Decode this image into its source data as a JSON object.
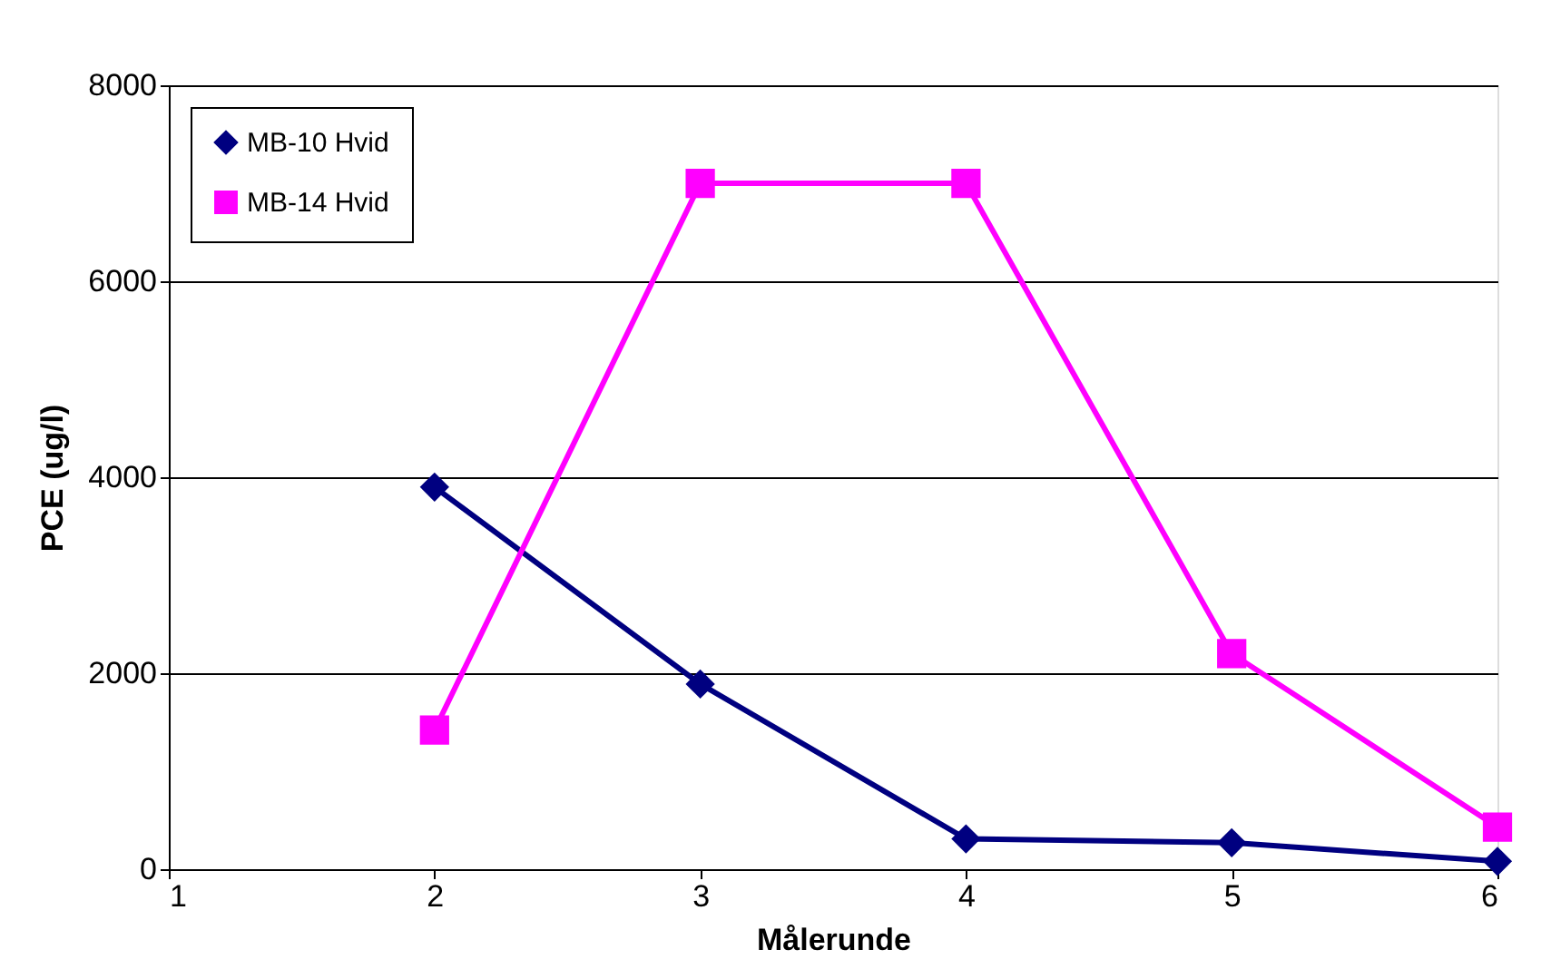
{
  "chart_data": {
    "type": "line",
    "xlabel": "Målerunde",
    "ylabel": "PCE (ug/l)",
    "x": [
      2,
      3,
      4,
      5,
      6
    ],
    "series": [
      {
        "name": "MB-10 Hvid",
        "color": "#000080",
        "marker": "diamond",
        "values": [
          3900,
          1890,
          310,
          270,
          80
        ]
      },
      {
        "name": "MB-14 Hvid",
        "color": "#ff00ff",
        "marker": "square",
        "values": [
          1420,
          7000,
          7000,
          2200,
          430
        ]
      }
    ],
    "xlim": [
      1,
      6
    ],
    "xticks": [
      1,
      2,
      3,
      4,
      5,
      6
    ],
    "ylim": [
      0,
      8000
    ],
    "yticks": [
      0,
      2000,
      4000,
      6000,
      8000
    ],
    "grid": "y",
    "legend": "top left",
    "line_style": "solid"
  }
}
